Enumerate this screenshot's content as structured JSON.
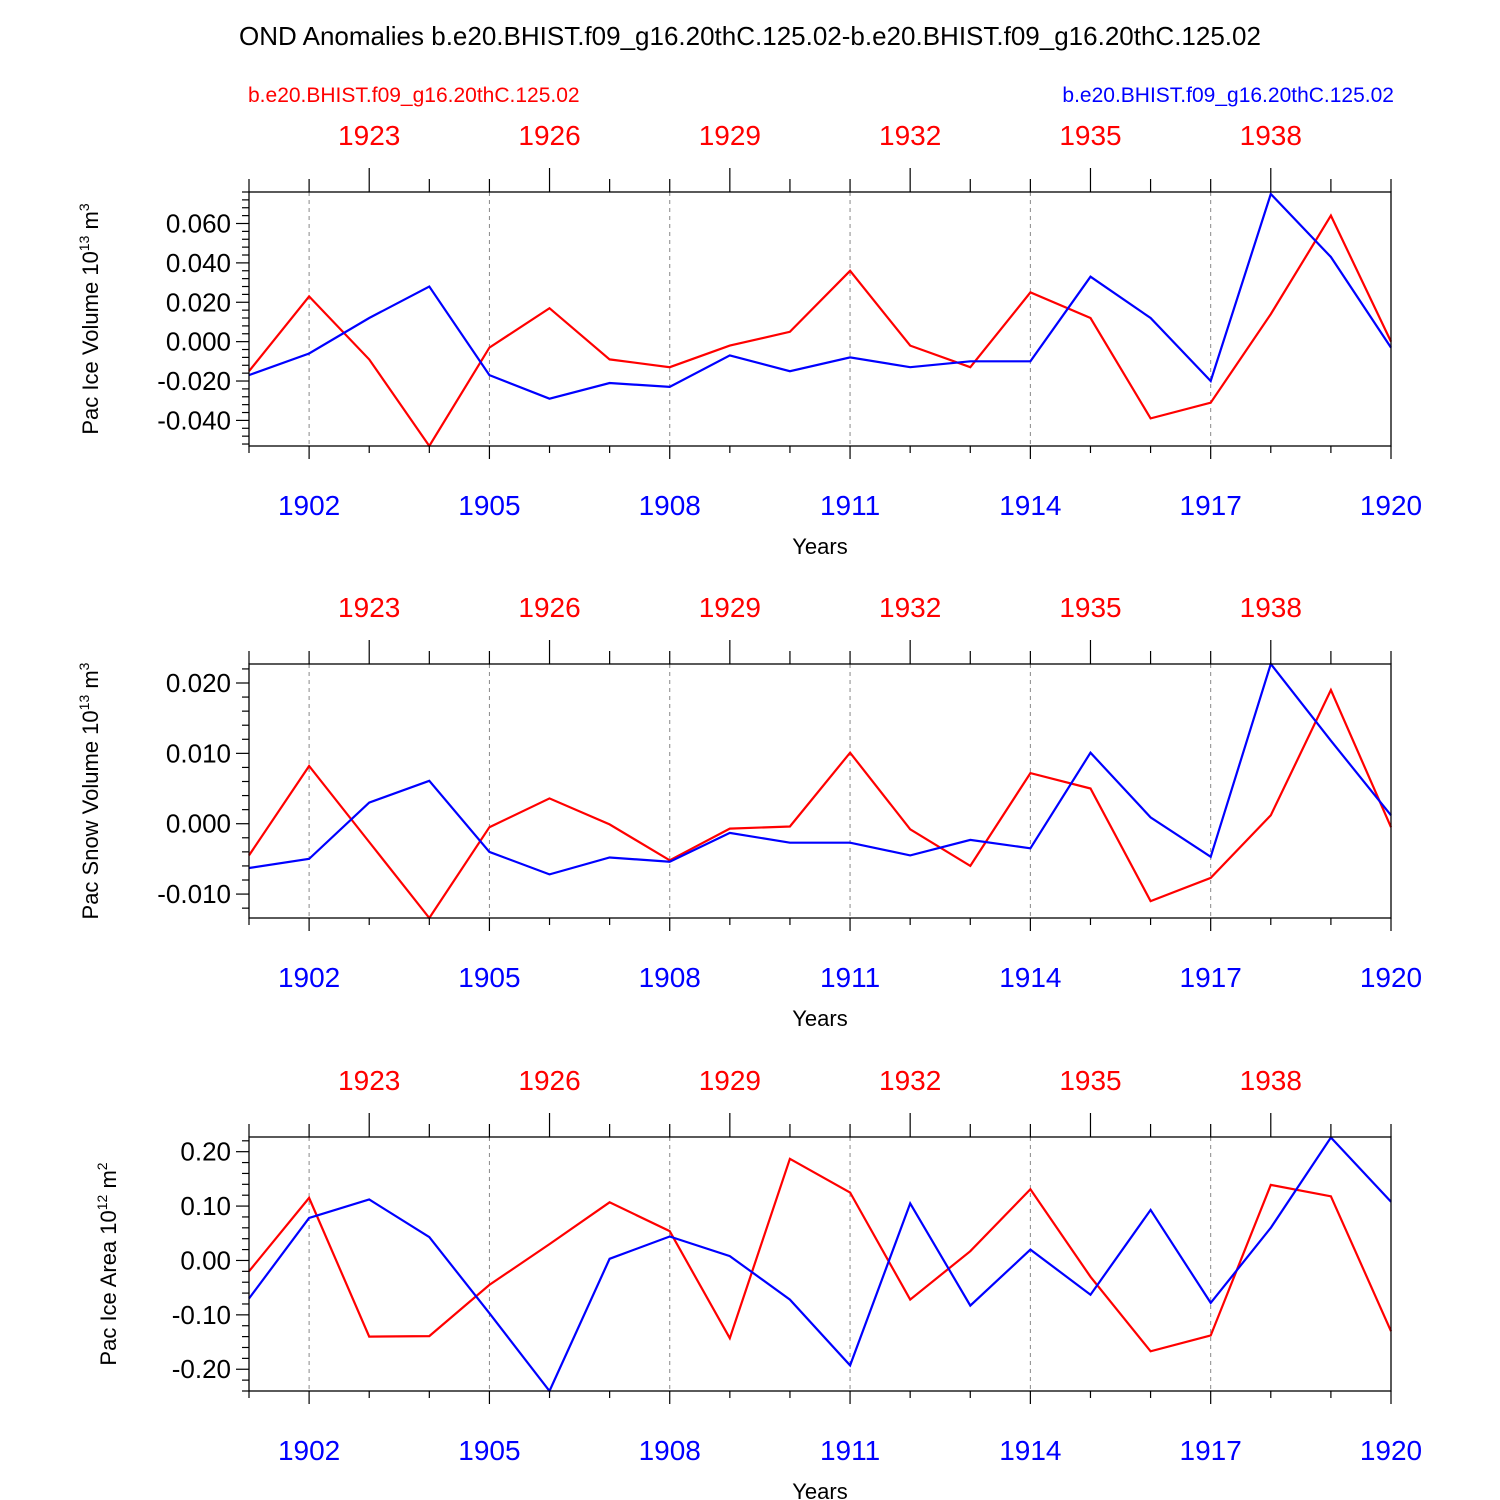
{
  "title": "OND Anomalies b.e20.BHIST.f09_g16.20thC.125.02-b.e20.BHIST.f09_g16.20thC.125.02",
  "legend": {
    "left": "b.e20.BHIST.f09_g16.20thC.125.02",
    "right": "b.e20.BHIST.f09_g16.20thC.125.02"
  },
  "colors": {
    "red": "#ff0000",
    "blue": "#0000ff",
    "grid": "#888888"
  },
  "chart_data": [
    {
      "type": "line",
      "ylabel": "Pac Ice Volume 10",
      "ylabel_exp": "13",
      "ylabel_unit": " m",
      "ylabel_unit_exp": "3",
      "xlabel": "Years",
      "ylim": [
        -0.053,
        0.076
      ],
      "yticks": [
        0.06,
        0.04,
        0.02,
        0.0,
        -0.02,
        -0.04
      ],
      "ytick_labels": [
        "0.060",
        "0.040",
        "0.020",
        "0.000",
        "-0.020",
        "-0.040"
      ],
      "xlim": [
        1901,
        1920
      ],
      "x_bottom_ticks": [
        1902,
        1905,
        1908,
        1911,
        1914,
        1917,
        1920
      ],
      "x_top_ticks": [
        1923,
        1926,
        1929,
        1932,
        1935,
        1938
      ],
      "x_top_offset": 20,
      "grid_x": [
        1902,
        1905,
        1908,
        1911,
        1914,
        1917
      ],
      "series": [
        {
          "color": "#ff0000",
          "x": [
            1901,
            1902,
            1903,
            1904,
            1905,
            1906,
            1907,
            1908,
            1909,
            1910,
            1911,
            1912,
            1913,
            1914,
            1915,
            1916,
            1917,
            1918,
            1919,
            1920
          ],
          "values": [
            -0.015,
            0.023,
            -0.009,
            -0.053,
            -0.003,
            0.017,
            -0.009,
            -0.013,
            -0.002,
            0.005,
            0.036,
            -0.002,
            -0.013,
            0.025,
            0.012,
            -0.039,
            -0.031,
            0.014,
            0.064,
            0.0
          ]
        },
        {
          "color": "#0000ff",
          "x": [
            1901,
            1902,
            1903,
            1904,
            1905,
            1906,
            1907,
            1908,
            1909,
            1910,
            1911,
            1912,
            1913,
            1914,
            1915,
            1916,
            1917,
            1918,
            1919,
            1920
          ],
          "values": [
            -0.017,
            -0.006,
            0.012,
            0.028,
            -0.017,
            -0.029,
            -0.021,
            -0.023,
            -0.007,
            -0.015,
            -0.008,
            -0.013,
            -0.01,
            -0.01,
            0.033,
            0.012,
            -0.02,
            0.075,
            0.043,
            -0.003
          ]
        }
      ]
    },
    {
      "type": "line",
      "ylabel": "Pac Snow Volume 10",
      "ylabel_exp": "13",
      "ylabel_unit": " m",
      "ylabel_unit_exp": "3",
      "xlabel": "Years",
      "ylim": [
        -0.0134,
        0.0227
      ],
      "yticks": [
        0.02,
        0.01,
        0.0,
        -0.01
      ],
      "ytick_labels": [
        "0.020",
        "0.010",
        "0.000",
        "-0.010"
      ],
      "xlim": [
        1901,
        1920
      ],
      "x_bottom_ticks": [
        1902,
        1905,
        1908,
        1911,
        1914,
        1917,
        1920
      ],
      "x_top_ticks": [
        1923,
        1926,
        1929,
        1932,
        1935,
        1938
      ],
      "x_top_offset": 20,
      "grid_x": [
        1902,
        1905,
        1908,
        1911,
        1914,
        1917
      ],
      "series": [
        {
          "color": "#ff0000",
          "x": [
            1901,
            1902,
            1903,
            1904,
            1905,
            1906,
            1907,
            1908,
            1909,
            1910,
            1911,
            1912,
            1913,
            1914,
            1915,
            1916,
            1917,
            1918,
            1919,
            1920
          ],
          "values": [
            -0.0045,
            0.0082,
            -0.0026,
            -0.0134,
            -0.0005,
            0.0036,
            -0.0001,
            -0.0052,
            -0.0007,
            -0.0004,
            0.0101,
            -0.0008,
            -0.006,
            0.0072,
            0.005,
            -0.011,
            -0.0077,
            0.0012,
            0.019,
            -0.0005
          ]
        },
        {
          "color": "#0000ff",
          "x": [
            1901,
            1902,
            1903,
            1904,
            1905,
            1906,
            1907,
            1908,
            1909,
            1910,
            1911,
            1912,
            1913,
            1914,
            1915,
            1916,
            1917,
            1918,
            1919,
            1920
          ],
          "values": [
            -0.0063,
            -0.005,
            0.003,
            0.0061,
            -0.004,
            -0.0072,
            -0.0048,
            -0.0054,
            -0.0013,
            -0.0027,
            -0.0027,
            -0.0045,
            -0.0023,
            -0.0035,
            0.0101,
            0.0009,
            -0.0047,
            0.0227,
            0.0118,
            0.0012
          ]
        }
      ]
    },
    {
      "type": "line",
      "ylabel": "Pac Ice Area 10",
      "ylabel_exp": "12",
      "ylabel_unit": " m",
      "ylabel_unit_exp": "2",
      "xlabel": "Years",
      "ylim": [
        -0.24,
        0.227
      ],
      "yticks": [
        0.2,
        0.1,
        0.0,
        -0.1,
        -0.2
      ],
      "ytick_labels": [
        "0.20",
        "0.10",
        "0.00",
        "-0.10",
        "-0.20"
      ],
      "xlim": [
        1901,
        1920
      ],
      "x_bottom_ticks": [
        1902,
        1905,
        1908,
        1911,
        1914,
        1917,
        1920
      ],
      "x_top_ticks": [
        1923,
        1926,
        1929,
        1932,
        1935,
        1938
      ],
      "x_top_offset": 20,
      "grid_x": [
        1902,
        1905,
        1908,
        1911,
        1914,
        1917
      ],
      "series": [
        {
          "color": "#ff0000",
          "x": [
            1901,
            1902,
            1903,
            1904,
            1905,
            1906,
            1907,
            1908,
            1909,
            1910,
            1911,
            1912,
            1913,
            1914,
            1915,
            1916,
            1917,
            1918,
            1919,
            1920
          ],
          "values": [
            -0.02,
            0.115,
            -0.14,
            -0.139,
            -0.045,
            0.03,
            0.107,
            0.054,
            -0.143,
            0.187,
            0.125,
            -0.072,
            0.017,
            0.131,
            -0.03,
            -0.167,
            -0.138,
            0.139,
            0.118,
            -0.13
          ]
        },
        {
          "color": "#0000ff",
          "x": [
            1901,
            1902,
            1903,
            1904,
            1905,
            1906,
            1907,
            1908,
            1909,
            1910,
            1911,
            1912,
            1913,
            1914,
            1915,
            1916,
            1917,
            1918,
            1919,
            1920
          ],
          "values": [
            -0.07,
            0.078,
            0.112,
            0.043,
            -0.097,
            -0.24,
            0.003,
            0.044,
            0.008,
            -0.072,
            -0.193,
            0.105,
            -0.083,
            0.02,
            -0.063,
            0.093,
            -0.078,
            0.06,
            0.226,
            0.108
          ]
        }
      ]
    }
  ]
}
